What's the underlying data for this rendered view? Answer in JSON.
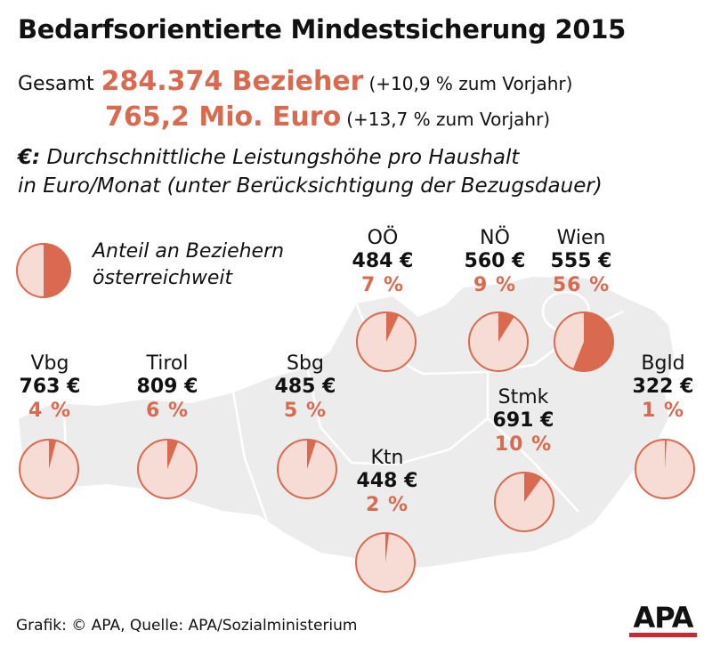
{
  "header": {
    "title": "Bedarfsorientierte Mindestsicherung 2015",
    "total_label": "Gesamt",
    "recipients_value": "284.374 Bezieher",
    "recipients_change": "(+10,9 % zum Vorjahr)",
    "cost_value": "765,2 Mio. Euro",
    "cost_change": "(+13,7 % zum Vorjahr)"
  },
  "note": {
    "symbol": "€:",
    "line1": "Durchschnittliche Leistungshöhe pro Haushalt",
    "line2": "in Euro/Monat (unter Berücksichtigung der Bezugsdauer)"
  },
  "legend": {
    "line1": "Anteil an Beziehern",
    "line2": "österreichweit"
  },
  "footer": {
    "credit": "Grafik: © APA, Quelle: APA/Sozialministerium",
    "logo": "APA"
  },
  "colors": {
    "accent": "#d96a4f",
    "pie_fill": "#f6dcd4",
    "pie_slice": "#d96a4f",
    "map_fill": "#ececec",
    "logo_bar": "#d0262f"
  },
  "chart_data": {
    "type": "pie",
    "title": "Anteil an Beziehern österreichweit",
    "unit_amount": "€ pro Haushalt / Monat",
    "unit_share": "%",
    "states": [
      {
        "name": "OÖ",
        "amount": "484 €",
        "amount_value": 484,
        "share": "7 %",
        "share_value": 7
      },
      {
        "name": "NÖ",
        "amount": "560 €",
        "amount_value": 560,
        "share": "9 %",
        "share_value": 9
      },
      {
        "name": "Wien",
        "amount": "555 €",
        "amount_value": 555,
        "share": "56 %",
        "share_value": 56
      },
      {
        "name": "Vbg",
        "amount": "763 €",
        "amount_value": 763,
        "share": "4 %",
        "share_value": 4
      },
      {
        "name": "Tirol",
        "amount": "809 €",
        "amount_value": 809,
        "share": "6 %",
        "share_value": 6
      },
      {
        "name": "Sbg",
        "amount": "485 €",
        "amount_value": 485,
        "share": "5 %",
        "share_value": 5
      },
      {
        "name": "Stmk",
        "amount": "691 €",
        "amount_value": 691,
        "share": "10 %",
        "share_value": 10
      },
      {
        "name": "Bgld",
        "amount": "322 €",
        "amount_value": 322,
        "share": "1 %",
        "share_value": 1
      },
      {
        "name": "Ktn",
        "amount": "448 €",
        "amount_value": 448,
        "share": "2 %",
        "share_value": 2
      }
    ]
  }
}
